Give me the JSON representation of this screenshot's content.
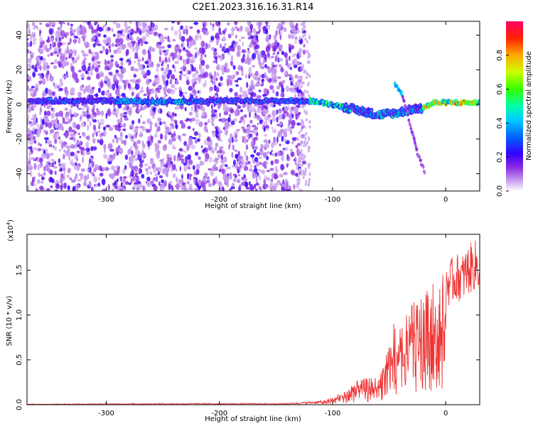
{
  "title": "C2E1.2023.316.16.31.R14",
  "chart_data": [
    {
      "type": "heatmap",
      "xlabel": "Height of straight line (km)",
      "ylabel": "Frequency (Hz)",
      "xlim": [
        -370,
        30
      ],
      "ylim": [
        -50,
        48
      ],
      "xticks": [
        -300,
        -200,
        -100,
        0
      ],
      "yticks": [
        -40,
        -20,
        0,
        20,
        40
      ],
      "colorbar": {
        "label": "Normalized spectral amplitude",
        "range": [
          0,
          1
        ],
        "ticks": [
          0.0,
          0.2,
          0.4,
          0.6,
          0.8
        ],
        "colors": [
          "#ffffff",
          "#8a2be2",
          "#3300ff",
          "#0099ff",
          "#00ffff",
          "#00ff44",
          "#ccff00",
          "#ffcc00",
          "#ff3300",
          "#ff0066"
        ]
      },
      "features": [
        {
          "name": "Noise scatter region",
          "x_range": [
            -370,
            -125
          ],
          "freq_range": [
            -50,
            48
          ],
          "amplitude": 0.2
        },
        {
          "name": "Main frequency trace",
          "points": [
            [
              -365,
              2
            ],
            [
              -300,
              2
            ],
            [
              -250,
              1.5
            ],
            [
              -200,
              2
            ],
            [
              -150,
              2
            ],
            [
              -120,
              2
            ],
            [
              -100,
              0
            ],
            [
              -80,
              -3
            ],
            [
              -60,
              -6
            ],
            [
              -45,
              -5
            ],
            [
              -30,
              -3
            ],
            [
              -20,
              -2
            ],
            [
              -10,
              1
            ],
            [
              0,
              1
            ],
            [
              30,
              1
            ]
          ],
          "amplitude_range": [
            0.25,
            0.95
          ]
        },
        {
          "name": "Branching trace",
          "points": [
            [
              -45,
              12
            ],
            [
              -38,
              5
            ],
            [
              -30,
              -15
            ],
            [
              -25,
              -28
            ],
            [
              -18,
              -40
            ]
          ],
          "amplitude": 0.3
        }
      ]
    },
    {
      "type": "line",
      "xlabel": "Height of straight line (km)",
      "ylabel": "SNR (10 * v/v)",
      "y_multiplier": "(x10",
      "y_multiplier_exp": "4",
      "y_multiplier_close": ")",
      "xlim": [
        -370,
        30
      ],
      "ylim": [
        0,
        1.9
      ],
      "xticks": [
        -300,
        -200,
        -100,
        0
      ],
      "yticks": [
        0.0,
        0.5,
        1.0,
        1.5
      ],
      "line_color": "#ee3333",
      "envelope": {
        "x": [
          -370,
          -250,
          -200,
          -140,
          -110,
          -100,
          -90,
          -80,
          -70,
          -60,
          -55,
          -50,
          -45,
          -40,
          -35,
          -30,
          -25,
          -20,
          -15,
          -10,
          -5,
          0,
          5,
          10,
          15,
          20,
          25,
          30
        ],
        "y": [
          0.005,
          0.01,
          0.01,
          0.01,
          0.03,
          0.08,
          0.15,
          0.25,
          0.28,
          0.3,
          0.45,
          0.7,
          0.9,
          0.85,
          0.95,
          1.1,
          1.1,
          1.2,
          1.3,
          1.3,
          1.4,
          1.55,
          1.6,
          1.65,
          1.65,
          1.75,
          1.8,
          1.8
        ]
      }
    }
  ]
}
